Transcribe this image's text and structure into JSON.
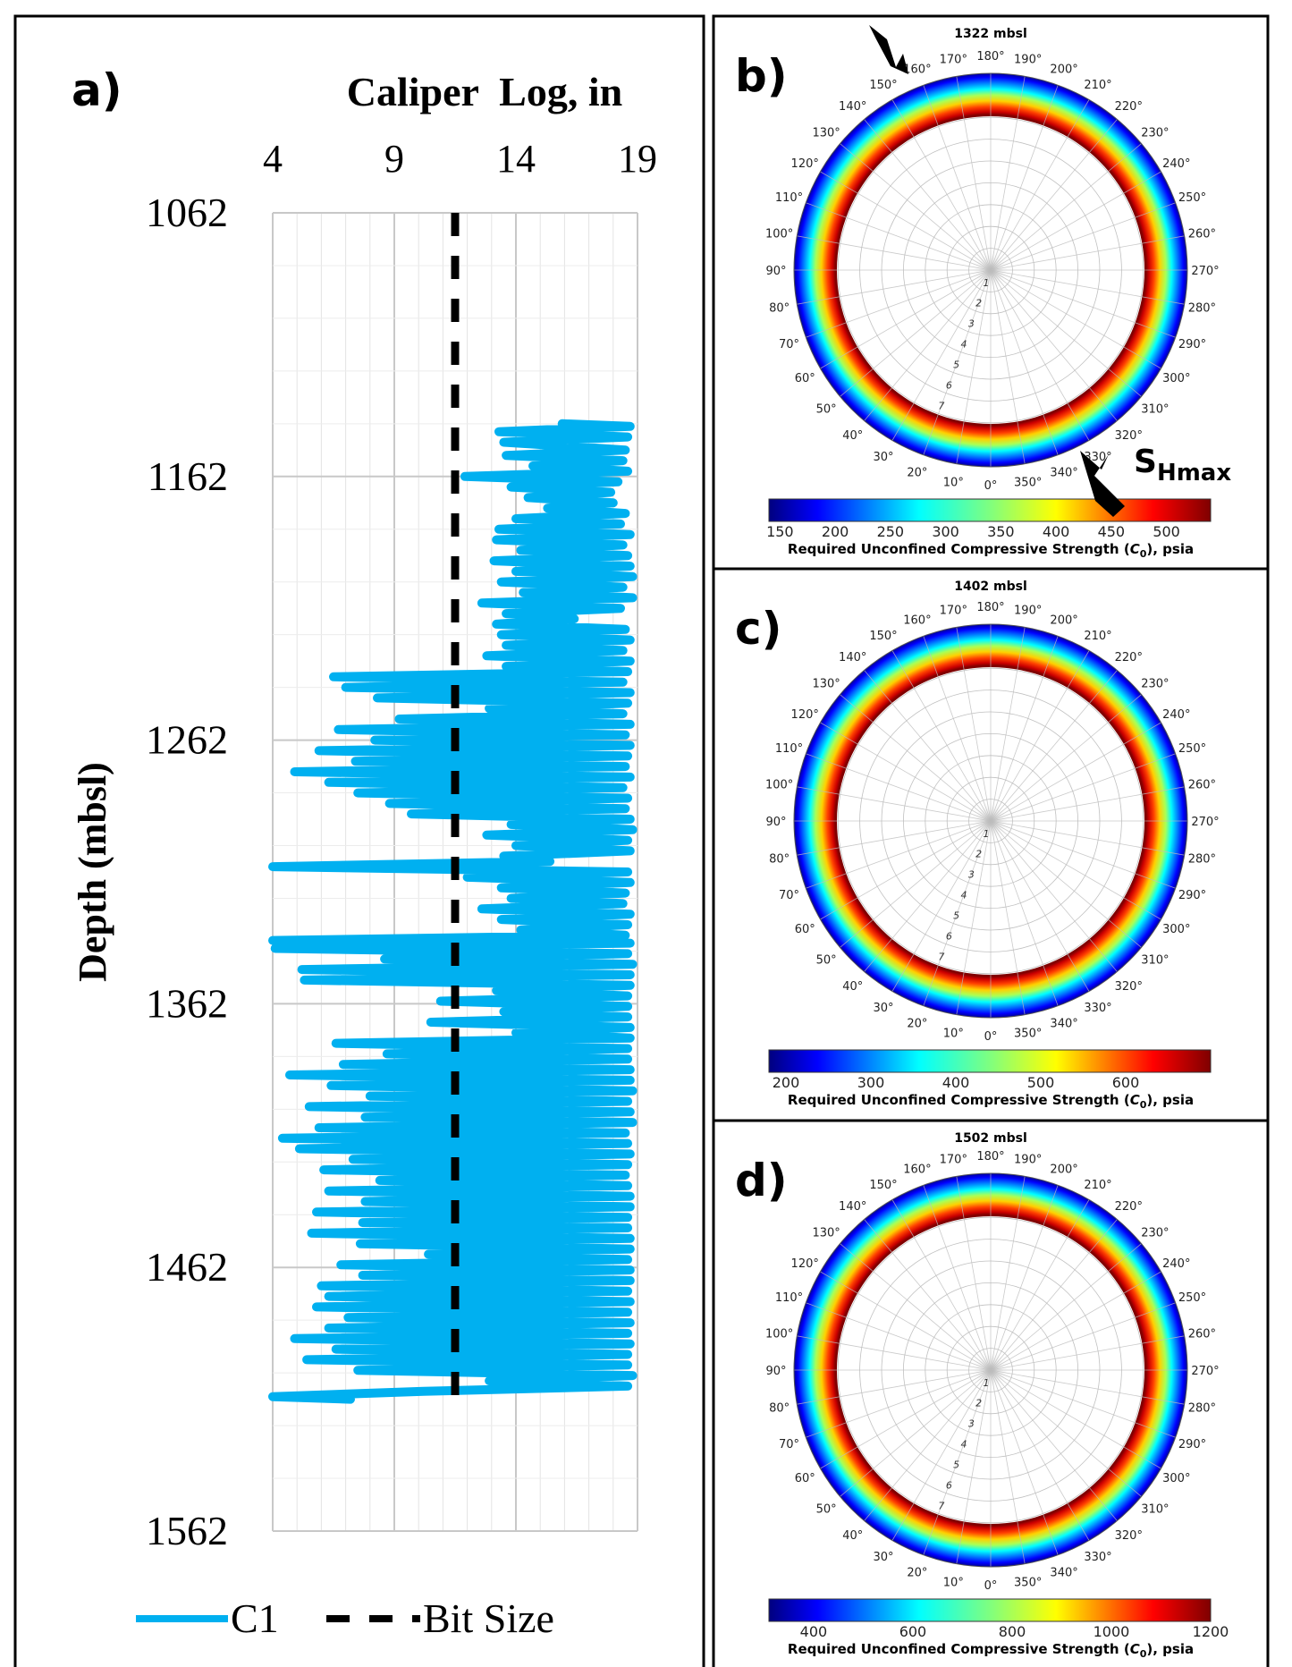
{
  "colors": {
    "c1": "#00b0f0",
    "bit": "#000000",
    "frame": "#000000",
    "grid": "#dcdcdc"
  },
  "panel_a": {
    "letter": "a)",
    "title": "Caliper  Log, in",
    "ylabel": "Depth (mbsl)",
    "legend": {
      "c1": "C1",
      "bit": "Bit Size"
    }
  },
  "chart_data": [
    {
      "type": "line",
      "title": "Caliper  Log, in",
      "ylabel": "Depth (mbsl)",
      "xlim": [
        4,
        19
      ],
      "xticks": [
        4,
        9,
        14,
        19
      ],
      "ylim": [
        1062,
        1562
      ],
      "yticks": [
        1062,
        1162,
        1262,
        1362,
        1462,
        1562
      ],
      "y_inverted": true,
      "x_axis_position": "top",
      "legend": "bottom",
      "series": [
        {
          "name": "C1",
          "points": [
            [
              1142,
              15.9
            ],
            [
              1143,
              18.7
            ],
            [
              1145,
              13.3
            ],
            [
              1147,
              18.6
            ],
            [
              1149,
              13.5
            ],
            [
              1150,
              15.2
            ],
            [
              1152,
              18.5
            ],
            [
              1154,
              13.6
            ],
            [
              1156,
              18.4
            ],
            [
              1158,
              14.7
            ],
            [
              1160,
              18.6
            ],
            [
              1162,
              11.9
            ],
            [
              1164,
              18.2
            ],
            [
              1166,
              13.8
            ],
            [
              1168,
              17.9
            ],
            [
              1170,
              14.5
            ],
            [
              1172,
              18.0
            ],
            [
              1174,
              15.3
            ],
            [
              1176,
              18.5
            ],
            [
              1178,
              14.0
            ],
            [
              1180,
              18.3
            ],
            [
              1182,
              13.3
            ],
            [
              1184,
              18.7
            ],
            [
              1186,
              13.2
            ],
            [
              1188,
              18.4
            ],
            [
              1190,
              14.2
            ],
            [
              1192,
              18.6
            ],
            [
              1194,
              13.1
            ],
            [
              1196,
              18.7
            ],
            [
              1198,
              14.0
            ],
            [
              1200,
              18.8
            ],
            [
              1202,
              13.4
            ],
            [
              1204,
              18.4
            ],
            [
              1206,
              14.3
            ],
            [
              1208,
              18.8
            ],
            [
              1210,
              12.6
            ],
            [
              1212,
              18.3
            ],
            [
              1214,
              13.6
            ],
            [
              1216,
              16.4
            ],
            [
              1218,
              13.2
            ],
            [
              1220,
              18.5
            ],
            [
              1222,
              13.4
            ],
            [
              1224,
              18.7
            ],
            [
              1226,
              13.6
            ],
            [
              1228,
              18.4
            ],
            [
              1230,
              12.8
            ],
            [
              1232,
              18.7
            ],
            [
              1234,
              13.6
            ],
            [
              1236,
              18.6
            ],
            [
              1238,
              6.5
            ],
            [
              1240,
              18.4
            ],
            [
              1242,
              7.0
            ],
            [
              1244,
              18.7
            ],
            [
              1246,
              8.3
            ],
            [
              1248,
              18.6
            ],
            [
              1250,
              12.9
            ],
            [
              1252,
              18.4
            ],
            [
              1254,
              9.2
            ],
            [
              1256,
              18.7
            ],
            [
              1258,
              6.7
            ],
            [
              1260,
              18.5
            ],
            [
              1262,
              8.2
            ],
            [
              1264,
              18.7
            ],
            [
              1266,
              5.9
            ],
            [
              1268,
              18.6
            ],
            [
              1270,
              7.4
            ],
            [
              1272,
              18.5
            ],
            [
              1274,
              4.9
            ],
            [
              1276,
              18.7
            ],
            [
              1278,
              6.3
            ],
            [
              1280,
              18.4
            ],
            [
              1282,
              7.5
            ],
            [
              1284,
              18.6
            ],
            [
              1286,
              8.8
            ],
            [
              1288,
              18.5
            ],
            [
              1290,
              9.7
            ],
            [
              1292,
              18.7
            ],
            [
              1294,
              13.8
            ],
            [
              1296,
              18.8
            ],
            [
              1298,
              12.8
            ],
            [
              1300,
              18.6
            ],
            [
              1302,
              14.0
            ],
            [
              1304,
              18.7
            ],
            [
              1306,
              13.5
            ],
            [
              1308,
              15.4
            ],
            [
              1310,
              4.0
            ],
            [
              1312,
              18.6
            ],
            [
              1314,
              12.0
            ],
            [
              1316,
              18.7
            ],
            [
              1318,
              13.4
            ],
            [
              1320,
              18.5
            ],
            [
              1322,
              13.8
            ],
            [
              1324,
              18.4
            ],
            [
              1326,
              12.6
            ],
            [
              1328,
              18.7
            ],
            [
              1330,
              13.4
            ],
            [
              1332,
              18.6
            ],
            [
              1334,
              14.2
            ],
            [
              1336,
              18.5
            ],
            [
              1338,
              4.0
            ],
            [
              1339,
              18.7
            ],
            [
              1341,
              4.1
            ],
            [
              1343,
              18.6
            ],
            [
              1345,
              8.6
            ],
            [
              1347,
              18.8
            ],
            [
              1349,
              5.2
            ],
            [
              1351,
              18.7
            ],
            [
              1353,
              5.3
            ],
            [
              1355,
              18.7
            ],
            [
              1357,
              13.2
            ],
            [
              1359,
              18.6
            ],
            [
              1361,
              10.9
            ],
            [
              1363,
              18.6
            ],
            [
              1365,
              13.5
            ],
            [
              1367,
              18.6
            ],
            [
              1369,
              10.5
            ],
            [
              1371,
              18.7
            ],
            [
              1373,
              14.0
            ],
            [
              1375,
              18.7
            ],
            [
              1377,
              6.6
            ],
            [
              1379,
              18.6
            ],
            [
              1381,
              8.7
            ],
            [
              1383,
              18.6
            ],
            [
              1385,
              6.9
            ],
            [
              1387,
              18.7
            ],
            [
              1389,
              4.7
            ],
            [
              1391,
              18.7
            ],
            [
              1393,
              6.4
            ],
            [
              1395,
              18.8
            ],
            [
              1397,
              8.0
            ],
            [
              1399,
              18.6
            ],
            [
              1401,
              5.5
            ],
            [
              1403,
              18.7
            ],
            [
              1405,
              7.8
            ],
            [
              1407,
              18.8
            ],
            [
              1409,
              5.9
            ],
            [
              1411,
              18.5
            ],
            [
              1413,
              4.4
            ],
            [
              1415,
              18.6
            ],
            [
              1417,
              5.1
            ],
            [
              1419,
              18.7
            ],
            [
              1421,
              7.3
            ],
            [
              1423,
              18.6
            ],
            [
              1425,
              6.1
            ],
            [
              1427,
              18.5
            ],
            [
              1429,
              8.4
            ],
            [
              1431,
              18.6
            ],
            [
              1433,
              6.3
            ],
            [
              1435,
              18.7
            ],
            [
              1437,
              7.8
            ],
            [
              1439,
              18.7
            ],
            [
              1441,
              5.8
            ],
            [
              1443,
              18.6
            ],
            [
              1445,
              7.7
            ],
            [
              1447,
              18.6
            ],
            [
              1449,
              5.6
            ],
            [
              1451,
              18.7
            ],
            [
              1453,
              7.6
            ],
            [
              1455,
              18.7
            ],
            [
              1457,
              10.4
            ],
            [
              1459,
              18.6
            ],
            [
              1461,
              6.8
            ],
            [
              1463,
              18.7
            ],
            [
              1465,
              7.7
            ],
            [
              1467,
              18.7
            ],
            [
              1469,
              6.0
            ],
            [
              1471,
              18.6
            ],
            [
              1473,
              6.3
            ],
            [
              1475,
              18.7
            ],
            [
              1477,
              5.8
            ],
            [
              1479,
              18.6
            ],
            [
              1481,
              7.1
            ],
            [
              1483,
              18.7
            ],
            [
              1485,
              6.3
            ],
            [
              1487,
              18.6
            ],
            [
              1489,
              4.9
            ],
            [
              1491,
              18.7
            ],
            [
              1493,
              6.6
            ],
            [
              1495,
              18.6
            ],
            [
              1497,
              5.4
            ],
            [
              1499,
              18.6
            ],
            [
              1501,
              7.5
            ],
            [
              1503,
              18.8
            ],
            [
              1505,
              12.9
            ],
            [
              1507,
              18.6
            ],
            [
              1509,
              10.2
            ],
            [
              1511,
              4.0
            ],
            [
              1512,
              7.2
            ]
          ]
        },
        {
          "name": "Bit Size",
          "x": 11.5,
          "y_range": [
            1062,
            1512
          ]
        }
      ]
    },
    {
      "type": "heatmap",
      "title": "1322 mbsl",
      "colorbar_label": "Required Unconfined Compressive Strength (C0), psia",
      "colorbar_ticks": [
        150,
        200,
        250,
        300,
        350,
        400,
        450,
        500
      ],
      "colorbar_range": [
        140,
        540
      ],
      "azimuth_ticks": [
        "0°",
        "10°",
        "20°",
        "30°",
        "40°",
        "50°",
        "60°",
        "70°",
        "80°",
        "90°",
        "100°",
        "110°",
        "120°",
        "130°",
        "140°",
        "150°",
        "160°",
        "170°",
        "180°",
        "190°",
        "200°",
        "210°",
        "220°",
        "230°",
        "240°",
        "250°",
        "260°",
        "270°",
        "280°",
        "290°",
        "300°",
        "310°",
        "320°",
        "330°",
        "340°",
        "350°"
      ],
      "radial_ticks": [
        "1",
        "2",
        "3",
        "4",
        "5",
        "6",
        "7"
      ],
      "annotation": "SHmax"
    },
    {
      "type": "heatmap",
      "title": "1402 mbsl",
      "colorbar_label": "Required Unconfined Compressive Strength (C0), psia",
      "colorbar_ticks": [
        200,
        300,
        400,
        500,
        600
      ],
      "colorbar_range": [
        180,
        700
      ],
      "azimuth_ticks": [
        "0°",
        "10°",
        "20°",
        "30°",
        "40°",
        "50°",
        "60°",
        "70°",
        "80°",
        "90°",
        "100°",
        "110°",
        "120°",
        "130°",
        "140°",
        "150°",
        "160°",
        "170°",
        "180°",
        "190°",
        "200°",
        "210°",
        "220°",
        "230°",
        "240°",
        "250°",
        "260°",
        "270°",
        "280°",
        "290°",
        "300°",
        "310°",
        "320°",
        "330°",
        "340°",
        "350°"
      ],
      "radial_ticks": [
        "1",
        "2",
        "3",
        "4",
        "5",
        "6",
        "7"
      ]
    },
    {
      "type": "heatmap",
      "title": "1502 mbsl",
      "colorbar_label": "Required Unconfined Compressive Strength (C0), psia",
      "colorbar_ticks": [
        400,
        600,
        800,
        1000,
        1200
      ],
      "colorbar_range": [
        310,
        1200
      ],
      "azimuth_ticks": [
        "0°",
        "10°",
        "20°",
        "30°",
        "40°",
        "50°",
        "60°",
        "70°",
        "80°",
        "90°",
        "100°",
        "110°",
        "120°",
        "130°",
        "140°",
        "150°",
        "160°",
        "170°",
        "180°",
        "190°",
        "200°",
        "210°",
        "220°",
        "230°",
        "240°",
        "250°",
        "260°",
        "270°",
        "280°",
        "290°",
        "300°",
        "310°",
        "320°",
        "330°",
        "340°",
        "350°"
      ],
      "radial_ticks": [
        "1",
        "2",
        "3",
        "4",
        "5",
        "6",
        "7"
      ]
    }
  ],
  "polar_panels": [
    {
      "letter": "b)",
      "depth": "1322 mbsl",
      "colorbar_label_pre": "Required Unconfined Compressive Strength (",
      "colorbar_label_sym": "C",
      "colorbar_label_sub": "0",
      "colorbar_label_post": "), psia",
      "shmax_main": "S",
      "shmax_sub": "Hmax"
    },
    {
      "letter": "c)",
      "depth": "1402 mbsl",
      "colorbar_label_pre": "Required Unconfined Compressive Strength (",
      "colorbar_label_sym": "C",
      "colorbar_label_sub": "0",
      "colorbar_label_post": "), psia"
    },
    {
      "letter": "d)",
      "depth": "1502 mbsl",
      "colorbar_label_pre": "Required Unconfined Compressive Strength (",
      "colorbar_label_sym": "C",
      "colorbar_label_sub": "0",
      "colorbar_label_post": "), psia"
    }
  ]
}
